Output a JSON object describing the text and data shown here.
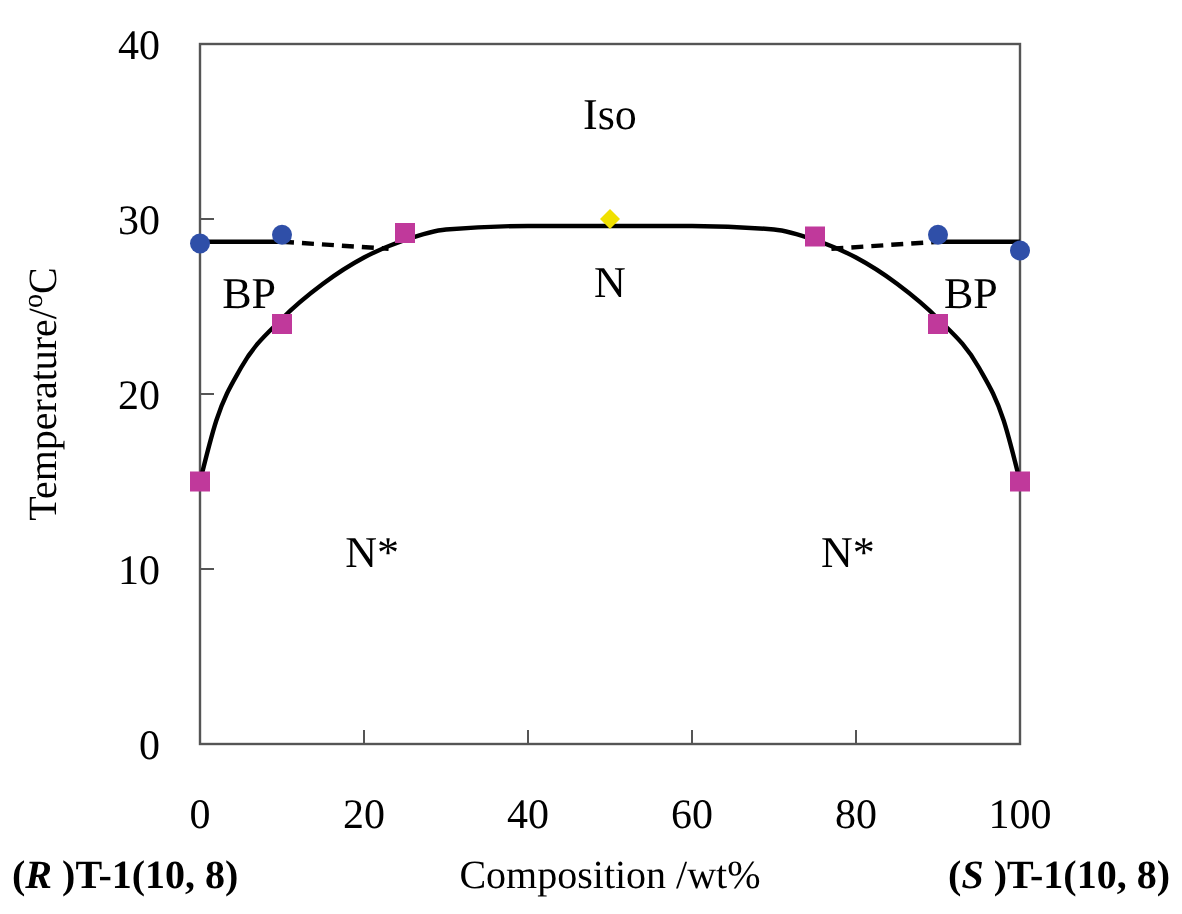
{
  "chart_data": {
    "type": "scatter",
    "xlabel": "Composition /wt%",
    "ylabel": "Temperature/$^{o}$C",
    "xlim": [
      0,
      100
    ],
    "xticks": [
      0,
      20,
      40,
      60,
      80,
      100
    ],
    "ylim": [
      0,
      40
    ],
    "yticks": [
      0,
      10,
      20,
      30,
      40
    ],
    "grid": false,
    "series": [
      {
        "type": "line",
        "color": "#000000",
        "line_style": "solid",
        "x": [
          0,
          2,
          5,
          10,
          15,
          20,
          25,
          30,
          40,
          50,
          60,
          70,
          75,
          80,
          85,
          90,
          95,
          98,
          100
        ],
        "values": [
          15,
          18.5,
          21.5,
          24.3,
          26.3,
          27.8,
          28.8,
          29.4,
          29.6,
          29.6,
          29.6,
          29.4,
          28.8,
          27.8,
          26.3,
          24.3,
          21.5,
          18.5,
          15
        ]
      },
      {
        "type": "line",
        "color": "#000000",
        "line_style": "solid",
        "x": [
          0,
          10
        ],
        "values": [
          28.7,
          28.7
        ]
      },
      {
        "type": "line",
        "color": "#000000",
        "line_style": "solid",
        "x": [
          90,
          100
        ],
        "values": [
          28.7,
          28.7
        ]
      },
      {
        "type": "line",
        "color": "#000000",
        "line_style": "dashed",
        "x": [
          10,
          23
        ],
        "values": [
          28.7,
          28.3
        ]
      },
      {
        "type": "line",
        "color": "#000000",
        "line_style": "dashed",
        "x": [
          77,
          90
        ],
        "values": [
          28.3,
          28.7
        ]
      },
      {
        "color": "#2f4fa8",
        "marker": "circle",
        "x": [
          0,
          10,
          90,
          100
        ],
        "values": [
          28.6,
          29.1,
          29.1,
          28.2
        ]
      },
      {
        "color": "#c0399b",
        "marker": "square",
        "x": [
          0,
          10,
          25,
          75,
          90,
          100
        ],
        "values": [
          15,
          24,
          29.2,
          29,
          24,
          15
        ]
      },
      {
        "color": "#f0e000",
        "marker": "diamond",
        "x": [
          50
        ],
        "values": [
          30
        ]
      }
    ],
    "annotations": [
      "Iso",
      "N",
      "BP",
      "BP",
      "N*",
      "N*",
      "(R )T-1(10, 8)",
      "(S )T-1(10, 8)"
    ]
  }
}
